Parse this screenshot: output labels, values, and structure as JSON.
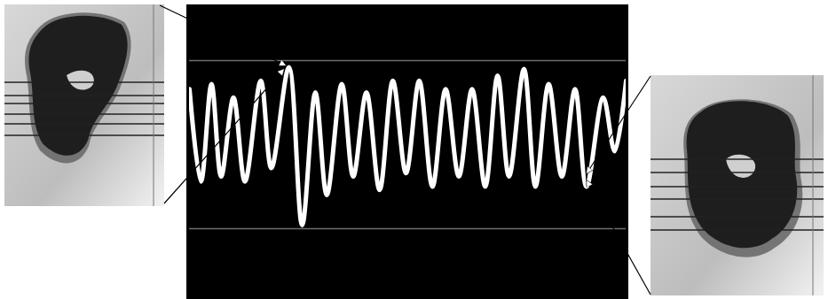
{
  "chart_data": {
    "type": "line",
    "color": "#ffffff",
    "line_style": "solid",
    "tick_labels": false,
    "grid": false,
    "x": [
      0,
      13,
      25,
      36,
      50,
      63,
      81,
      93,
      113,
      128,
      143,
      156,
      173,
      186,
      201,
      216,
      231,
      246,
      261,
      276,
      291,
      306,
      321,
      336,
      350,
      363,
      380,
      393,
      408,
      423,
      438,
      451,
      470,
      483,
      496
    ],
    "values": [
      83,
      28,
      86,
      31,
      78,
      28,
      88,
      36,
      96,
      2,
      81,
      20,
      86,
      31,
      81,
      23,
      88,
      33,
      88,
      25,
      83,
      31,
      83,
      25,
      91,
      31,
      95,
      25,
      86,
      31,
      83,
      25,
      78,
      46,
      88
    ],
    "xlim": [
      0,
      496
    ],
    "ylim": [
      0,
      100
    ]
  }
}
